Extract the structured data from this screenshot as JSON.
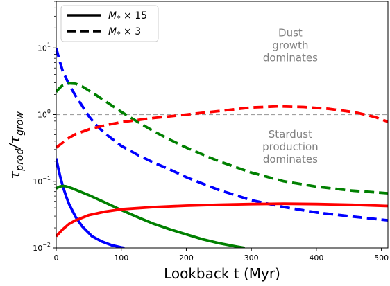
{
  "chart_data": {
    "type": "line",
    "xlabel": "Lookback t (Myr)",
    "ylabel_main": "τ",
    "ylabel_sub1": "prod",
    "ylabel_sep": "/τ",
    "ylabel_sub2": "grow",
    "xlim": [
      0,
      510
    ],
    "ylim": [
      0.01,
      50
    ],
    "yscale": "log",
    "xticks": [
      0,
      100,
      200,
      300,
      400,
      500
    ],
    "xtick_labels": [
      "0",
      "100",
      "200",
      "300",
      "400",
      "500"
    ],
    "yticks": [
      0.01,
      0.1,
      1,
      10
    ],
    "ytick_labels": [
      {
        "base": "10",
        "exp": "−2"
      },
      {
        "base": "10",
        "exp": "−1"
      },
      {
        "base": "10",
        "exp": "0"
      },
      {
        "base": "10",
        "exp": "1"
      }
    ],
    "reference_line": {
      "y": 1,
      "color": "#a0a0a0",
      "style": "dashed"
    },
    "legend": {
      "placement": "top-left",
      "entries": [
        {
          "label_main": "M",
          "label_sub": "*",
          "label_rest": " × 15",
          "style": "solid"
        },
        {
          "label_main": "M",
          "label_sub": "*",
          "label_rest": " × 3",
          "style": "dashed"
        }
      ]
    },
    "annotations": [
      {
        "lines": [
          "Dust",
          "growth",
          "dominates"
        ],
        "x": 360,
        "y_top": 15
      },
      {
        "lines": [
          "Stardust",
          "production",
          "dominates"
        ],
        "x": 360,
        "y_top": 0.45
      }
    ],
    "series": [
      {
        "color": "#0000ff",
        "style": "dashed",
        "points": [
          [
            0,
            10
          ],
          [
            5,
            6.5
          ],
          [
            10,
            4.5
          ],
          [
            20,
            2.8
          ],
          [
            30,
            1.9
          ],
          [
            40,
            1.35
          ],
          [
            50,
            0.95
          ],
          [
            60,
            0.72
          ],
          [
            75,
            0.52
          ],
          [
            100,
            0.34
          ],
          [
            125,
            0.25
          ],
          [
            150,
            0.19
          ],
          [
            175,
            0.15
          ],
          [
            200,
            0.115
          ],
          [
            250,
            0.074
          ],
          [
            300,
            0.052
          ],
          [
            350,
            0.041
          ],
          [
            400,
            0.034
          ],
          [
            450,
            0.03
          ],
          [
            510,
            0.026
          ]
        ]
      },
      {
        "color": "#008000",
        "style": "dashed",
        "points": [
          [
            0,
            2.2
          ],
          [
            5,
            2.5
          ],
          [
            10,
            2.75
          ],
          [
            20,
            2.95
          ],
          [
            30,
            2.9
          ],
          [
            40,
            2.65
          ],
          [
            50,
            2.3
          ],
          [
            60,
            2.0
          ],
          [
            75,
            1.6
          ],
          [
            100,
            1.1
          ],
          [
            125,
            0.78
          ],
          [
            150,
            0.56
          ],
          [
            175,
            0.42
          ],
          [
            200,
            0.32
          ],
          [
            250,
            0.2
          ],
          [
            300,
            0.135
          ],
          [
            350,
            0.1
          ],
          [
            400,
            0.083
          ],
          [
            450,
            0.073
          ],
          [
            510,
            0.066
          ]
        ]
      },
      {
        "color": "#ff0000",
        "style": "dashed",
        "points": [
          [
            0,
            0.32
          ],
          [
            10,
            0.38
          ],
          [
            20,
            0.45
          ],
          [
            30,
            0.51
          ],
          [
            50,
            0.6
          ],
          [
            75,
            0.69
          ],
          [
            100,
            0.77
          ],
          [
            150,
            0.89
          ],
          [
            200,
            1.0
          ],
          [
            250,
            1.13
          ],
          [
            300,
            1.28
          ],
          [
            340,
            1.33
          ],
          [
            380,
            1.3
          ],
          [
            420,
            1.22
          ],
          [
            460,
            1.08
          ],
          [
            490,
            0.92
          ],
          [
            510,
            0.78
          ]
        ]
      },
      {
        "color": "#0000ff",
        "style": "solid",
        "points": [
          [
            0,
            0.22
          ],
          [
            3,
            0.16
          ],
          [
            6,
            0.12
          ],
          [
            10,
            0.085
          ],
          [
            15,
            0.06
          ],
          [
            20,
            0.045
          ],
          [
            30,
            0.029
          ],
          [
            40,
            0.021
          ],
          [
            55,
            0.015
          ],
          [
            70,
            0.0125
          ],
          [
            85,
            0.011
          ],
          [
            100,
            0.0102
          ],
          [
            105,
            0.01
          ]
        ]
      },
      {
        "color": "#008000",
        "style": "solid",
        "points": [
          [
            0,
            0.078
          ],
          [
            5,
            0.083
          ],
          [
            10,
            0.085
          ],
          [
            15,
            0.084
          ],
          [
            25,
            0.078
          ],
          [
            50,
            0.062
          ],
          [
            75,
            0.048
          ],
          [
            100,
            0.037
          ],
          [
            125,
            0.029
          ],
          [
            150,
            0.023
          ],
          [
            175,
            0.019
          ],
          [
            200,
            0.016
          ],
          [
            225,
            0.0135
          ],
          [
            250,
            0.0118
          ],
          [
            275,
            0.0106
          ],
          [
            290,
            0.01
          ]
        ]
      },
      {
        "color": "#ff0000",
        "style": "solid",
        "points": [
          [
            0,
            0.015
          ],
          [
            10,
            0.019
          ],
          [
            20,
            0.023
          ],
          [
            30,
            0.026
          ],
          [
            50,
            0.031
          ],
          [
            75,
            0.035
          ],
          [
            100,
            0.038
          ],
          [
            150,
            0.041
          ],
          [
            200,
            0.043
          ],
          [
            250,
            0.0445
          ],
          [
            300,
            0.0455
          ],
          [
            350,
            0.046
          ],
          [
            400,
            0.0455
          ],
          [
            450,
            0.0445
          ],
          [
            510,
            0.0425
          ]
        ]
      }
    ]
  }
}
